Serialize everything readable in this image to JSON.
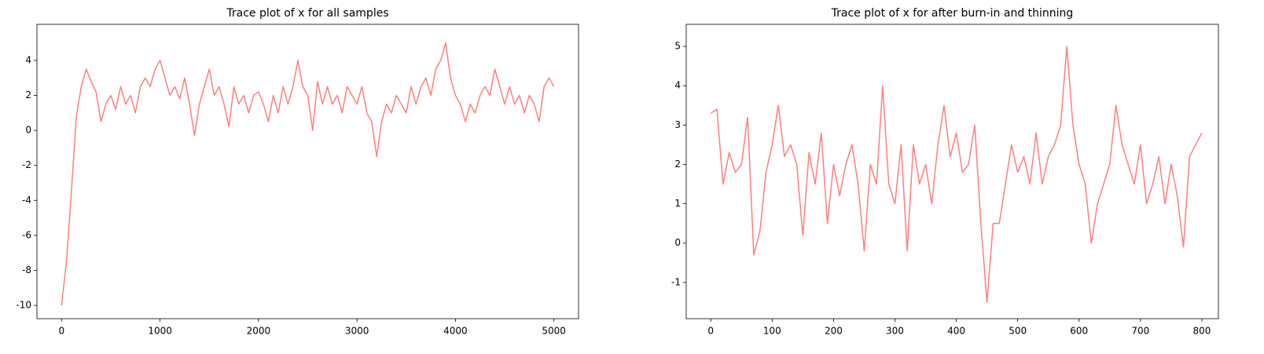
{
  "chart_data": [
    {
      "type": "line",
      "title": "Trace plot of x for all samples",
      "color": "#ff7f7f",
      "x": [
        0,
        50,
        100,
        150,
        200,
        250,
        300,
        350,
        400,
        450,
        500,
        550,
        600,
        650,
        700,
        750,
        800,
        850,
        900,
        950,
        1000,
        1050,
        1100,
        1150,
        1200,
        1250,
        1300,
        1350,
        1400,
        1450,
        1500,
        1550,
        1600,
        1650,
        1700,
        1750,
        1800,
        1850,
        1900,
        1950,
        2000,
        2050,
        2100,
        2150,
        2200,
        2250,
        2300,
        2350,
        2400,
        2450,
        2500,
        2550,
        2600,
        2650,
        2700,
        2750,
        2800,
        2850,
        2900,
        2950,
        3000,
        3050,
        3100,
        3150,
        3200,
        3250,
        3300,
        3350,
        3400,
        3450,
        3500,
        3550,
        3600,
        3650,
        3700,
        3750,
        3800,
        3850,
        3900,
        3950,
        4000,
        4050,
        4100,
        4150,
        4200,
        4250,
        4300,
        4350,
        4400,
        4450,
        4500,
        4550,
        4600,
        4650,
        4700,
        4750,
        4800,
        4850,
        4900,
        4950,
        5000
      ],
      "values": [
        -10,
        -7.5,
        -3.5,
        0.8,
        2.5,
        3.5,
        2.8,
        2.2,
        0.5,
        1.5,
        2,
        1.2,
        2.5,
        1.5,
        2,
        1,
        2.5,
        3,
        2.5,
        3.5,
        4,
        3,
        2,
        2.5,
        1.8,
        3,
        1.5,
        -0.3,
        1.5,
        2.5,
        3.5,
        2,
        2.5,
        1.5,
        0.2,
        2.5,
        1.5,
        2,
        1,
        2,
        2.2,
        1.5,
        0.5,
        2,
        1,
        2.5,
        1.5,
        2.5,
        4,
        2.5,
        2,
        0,
        2.8,
        1.5,
        2.5,
        1.5,
        2,
        1,
        2.5,
        2,
        1.5,
        2.5,
        1,
        0.5,
        -1.5,
        0.5,
        1.5,
        1,
        2,
        1.5,
        1,
        2.5,
        1.5,
        2.5,
        3,
        2,
        3.5,
        4,
        5,
        3,
        2,
        1.5,
        0.5,
        1.5,
        1,
        2,
        2.5,
        2,
        3.5,
        2.5,
        1.5,
        2.5,
        1.5,
        2,
        1,
        2,
        1.5,
        0.5,
        2.5,
        3,
        2.5
      ],
      "xlim": [
        -250,
        5250
      ],
      "xticks": [
        0,
        1000,
        2000,
        3000,
        4000,
        5000
      ],
      "ylim": [
        -10.76,
        6.06
      ],
      "yticks": [
        -10,
        -8,
        -6,
        -4,
        -2,
        0,
        2,
        4
      ]
    },
    {
      "type": "line",
      "title": "Trace plot of x for after burn-in and thinning",
      "color": "#ff7f7f",
      "x": [
        0,
        10,
        20,
        30,
        40,
        50,
        60,
        70,
        80,
        90,
        100,
        110,
        120,
        130,
        140,
        150,
        160,
        170,
        180,
        190,
        200,
        210,
        220,
        230,
        240,
        250,
        260,
        270,
        280,
        290,
        300,
        310,
        320,
        330,
        340,
        350,
        360,
        370,
        380,
        390,
        400,
        410,
        420,
        430,
        440,
        450,
        460,
        470,
        480,
        490,
        500,
        510,
        520,
        530,
        540,
        550,
        560,
        570,
        580,
        590,
        600,
        610,
        620,
        630,
        640,
        650,
        660,
        670,
        680,
        690,
        700,
        710,
        720,
        730,
        740,
        750,
        760,
        770,
        780,
        790,
        800
      ],
      "values": [
        3.3,
        3.4,
        1.5,
        2.3,
        1.8,
        2,
        3.2,
        -0.3,
        0.3,
        1.8,
        2.5,
        3.5,
        2.2,
        2.5,
        2,
        0.2,
        2.3,
        1.5,
        2.8,
        0.5,
        2,
        1.2,
        2,
        2.5,
        1.5,
        -0.2,
        2,
        1.5,
        4,
        1.5,
        1,
        2.5,
        -0.2,
        2.5,
        1.5,
        2,
        1,
        2.5,
        3.5,
        2.2,
        2.8,
        1.8,
        2,
        3,
        0.5,
        -1.5,
        0.5,
        0.5,
        1.5,
        2.5,
        1.8,
        2.2,
        1.5,
        2.8,
        1.5,
        2.2,
        2.5,
        3,
        5,
        3,
        2,
        1.5,
        0,
        1,
        1.5,
        2,
        3.5,
        2.5,
        2,
        1.5,
        2.5,
        1,
        1.5,
        2.2,
        1,
        2,
        1.2,
        -0.1,
        2.2,
        2.5,
        2.8
      ],
      "xlim": [
        -40,
        827
      ],
      "xticks": [
        0,
        100,
        200,
        300,
        400,
        500,
        600,
        700,
        800
      ],
      "ylim": [
        -1.92,
        5.56
      ],
      "yticks": [
        -1,
        0,
        1,
        2,
        3,
        4,
        5
      ]
    }
  ]
}
